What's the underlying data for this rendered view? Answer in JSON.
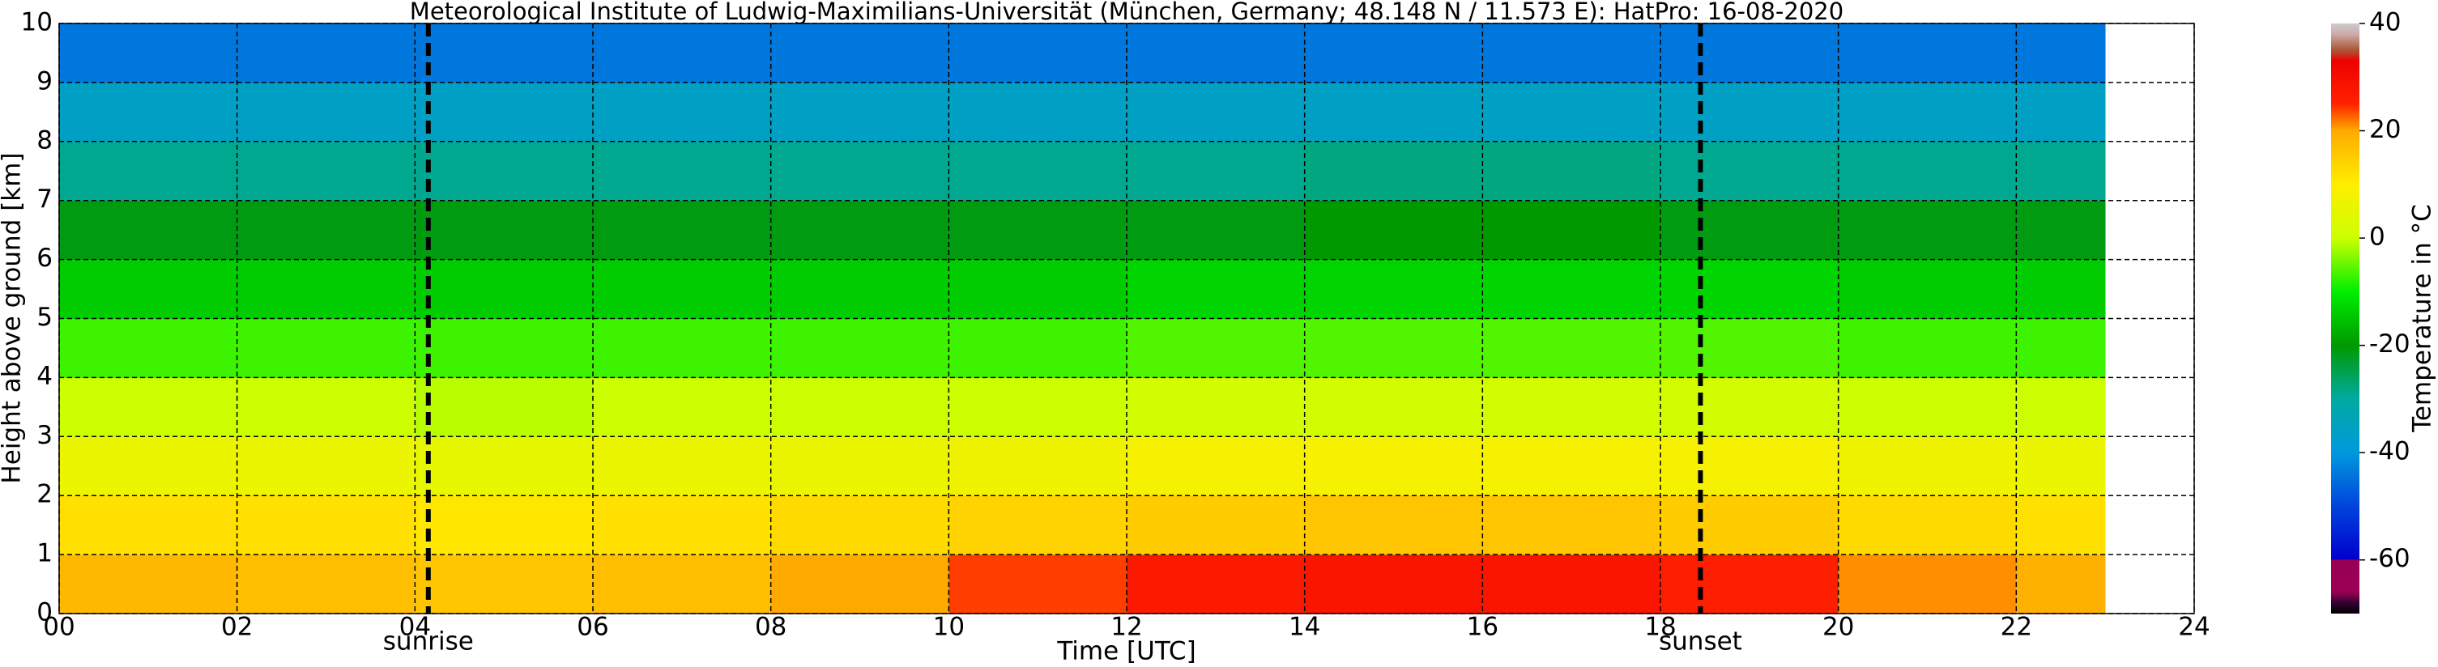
{
  "chart_data": {
    "type": "heatmap",
    "title": "Meteorological Institute of Ludwig-Maximilians-Universität (München, Germany; 48.148 N / 11.573 E):    HatPro: 16-08-2020",
    "xlabel": "Time [UTC]",
    "ylabel": "Height above ground [km]",
    "colorbar_label": "Temperature in °C",
    "xlim": [
      0,
      24
    ],
    "xticks": [
      {
        "value": 0,
        "label": "00"
      },
      {
        "value": 2,
        "label": "02"
      },
      {
        "value": 4,
        "label": "04"
      },
      {
        "value": 6,
        "label": "06"
      },
      {
        "value": 8,
        "label": "08"
      },
      10,
      12,
      14,
      16,
      18,
      20,
      22,
      24
    ],
    "ylim": [
      0,
      10
    ],
    "yticks": [
      0,
      1,
      2,
      3,
      4,
      5,
      6,
      7,
      8,
      9,
      10
    ],
    "clim": [
      -70,
      40
    ],
    "cticks": [
      -60,
      -40,
      -20,
      0,
      20,
      40
    ],
    "grid": true,
    "x_bins": [
      0,
      2,
      4,
      6,
      8,
      10,
      12,
      14,
      16,
      18,
      20,
      22,
      23
    ],
    "y_bins": [
      0,
      1,
      2,
      3,
      4,
      5,
      6,
      7,
      8,
      9,
      10
    ],
    "values": [
      [
        18,
        17,
        16,
        17,
        20,
        24,
        27,
        28,
        28,
        26,
        21,
        19
      ],
      [
        12,
        12,
        11,
        12,
        13,
        14,
        15,
        16,
        16,
        15,
        13,
        12
      ],
      [
        6,
        6,
        5,
        6,
        6,
        7,
        8,
        8,
        8,
        8,
        7,
        6
      ],
      [
        0,
        0,
        -1,
        0,
        0,
        0,
        1,
        1,
        1,
        1,
        0,
        0
      ],
      [
        -7,
        -7,
        -7,
        -7,
        -7,
        -7,
        -6,
        -6,
        -6,
        -6,
        -7,
        -7
      ],
      [
        -14,
        -14,
        -14,
        -14,
        -14,
        -14,
        -13,
        -13,
        -13,
        -13,
        -14,
        -14
      ],
      [
        -21,
        -21,
        -21,
        -21,
        -21,
        -21,
        -21,
        -20,
        -20,
        -21,
        -21,
        -21
      ],
      [
        -29,
        -29,
        -29,
        -29,
        -29,
        -29,
        -29,
        -28,
        -28,
        -29,
        -29,
        -29
      ],
      [
        -36,
        -36,
        -36,
        -36,
        -36,
        -36,
        -36,
        -36,
        -36,
        -36,
        -36,
        -36
      ],
      [
        -44,
        -44,
        -44,
        -44,
        -44,
        -44,
        -44,
        -44,
        -44,
        -44,
        -44,
        -44
      ]
    ],
    "colorscale": [
      {
        "value": -70,
        "color": "#000000"
      },
      {
        "value": -68,
        "color": "#330033"
      },
      {
        "value": -66,
        "color": "#990055"
      },
      {
        "value": -60,
        "color": "#990055"
      },
      {
        "value": -59.9,
        "color": "#0000cc"
      },
      {
        "value": -50,
        "color": "#0044dd"
      },
      {
        "value": -40,
        "color": "#0099dd"
      },
      {
        "value": -30,
        "color": "#00aaa0"
      },
      {
        "value": -20,
        "color": "#009900"
      },
      {
        "value": -10,
        "color": "#00ee00"
      },
      {
        "value": 0,
        "color": "#ccff00"
      },
      {
        "value": 10,
        "color": "#ffee00"
      },
      {
        "value": 20,
        "color": "#ffaa00"
      },
      {
        "value": 25,
        "color": "#ff2200"
      },
      {
        "value": 33,
        "color": "#ee0000"
      },
      {
        "value": 35,
        "color": "#aa5533"
      },
      {
        "value": 38,
        "color": "#ccaaaa"
      },
      {
        "value": 40,
        "color": "#cccccc"
      }
    ],
    "annotations": [
      {
        "text": "sunrise",
        "x": 4.15
      },
      {
        "text": "sunset",
        "x": 18.45
      }
    ]
  }
}
